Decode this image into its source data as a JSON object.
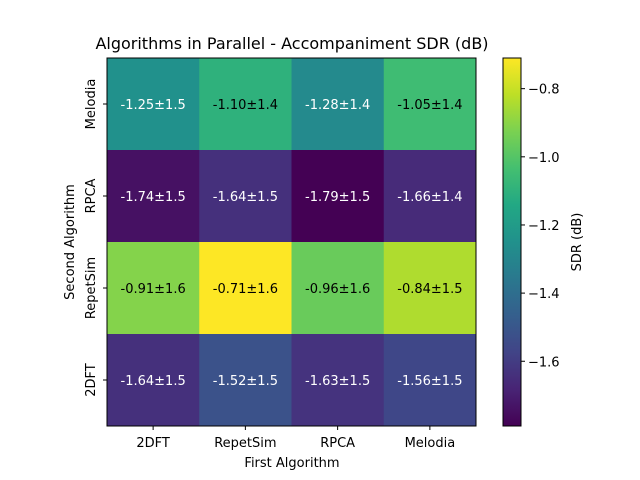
{
  "chart_data": {
    "type": "heatmap",
    "title": "Algorithms in Parallel - Accompaniment SDR (dB)",
    "xlabel": "First Algorithm",
    "ylabel": "Second Algorithm",
    "x_categories": [
      "2DFT",
      "RepetSim",
      "RPCA",
      "Melodia"
    ],
    "y_categories_top_to_bottom": [
      "Melodia",
      "RPCA",
      "RepetSim",
      "2DFT"
    ],
    "values": [
      [
        -1.25,
        -1.1,
        -1.28,
        -1.05
      ],
      [
        -1.74,
        -1.64,
        -1.79,
        -1.66
      ],
      [
        -0.91,
        -0.71,
        -0.96,
        -0.84
      ],
      [
        -1.64,
        -1.52,
        -1.63,
        -1.56
      ]
    ],
    "cell_labels": [
      [
        "-1.25±1.5",
        "-1.10±1.4",
        "-1.28±1.4",
        "-1.05±1.4"
      ],
      [
        "-1.74±1.5",
        "-1.64±1.5",
        "-1.79±1.5",
        "-1.66±1.4"
      ],
      [
        "-0.91±1.6",
        "-0.71±1.6",
        "-0.96±1.6",
        "-0.84±1.5"
      ],
      [
        "-1.64±1.5",
        "-1.52±1.5",
        "-1.63±1.5",
        "-1.56±1.5"
      ]
    ],
    "colormap": "viridis",
    "vmin": -1.79,
    "vmax": -0.71,
    "colorbar": {
      "label": "SDR (dB)",
      "ticks": [
        -0.8,
        -1.0,
        -1.2,
        -1.4,
        -1.6
      ],
      "tick_labels": [
        "−0.8",
        "−1.0",
        "−1.2",
        "−1.4",
        "−1.6"
      ]
    }
  }
}
